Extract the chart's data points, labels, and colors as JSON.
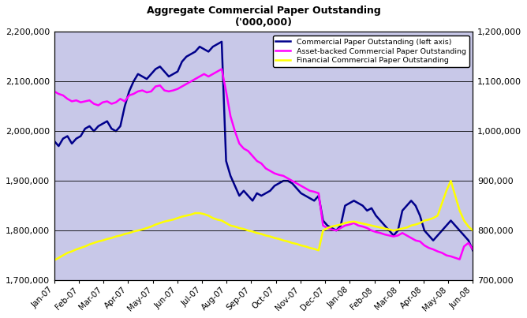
{
  "title_line1": "Aggregate Commercial Paper Outstanding",
  "title_line2": "('000,000)",
  "background_color": "#c8c8e8",
  "fig_bg_color": "#ffffff",
  "left_ylim": [
    1700000,
    2200000
  ],
  "right_ylim": [
    700000,
    1200000
  ],
  "left_yticks": [
    1700000,
    1800000,
    1900000,
    2000000,
    2100000,
    2200000
  ],
  "right_yticks": [
    700000,
    800000,
    900000,
    1000000,
    1100000,
    1200000
  ],
  "xtick_labels": [
    "Jan-07",
    "Feb-07",
    "Mar-07",
    "Apr-07",
    "May-07",
    "Jun-07",
    "Jul-07",
    "Aug-07",
    "Sep-07",
    "Oct-07",
    "Nov-07",
    "Dec-07",
    "Jan-08",
    "Feb-08",
    "Mar-08",
    "Apr-08",
    "May-08",
    "Jun-08"
  ],
  "cp_color": "#00008B",
  "abcp_color": "#FF00FF",
  "fcp_color": "#FFFF00",
  "cp_label": "Commercial Paper Outstanding (left axis)",
  "abcp_label": "Asset-backed Commercial Paper Outstanding",
  "fcp_label": "Financial Commercial Paper Outstanding",
  "cp_data": [
    1980000,
    1970000,
    1985000,
    1990000,
    1975000,
    1985000,
    1990000,
    2005000,
    2010000,
    2000000,
    2010000,
    2015000,
    2020000,
    2005000,
    2000000,
    2010000,
    2050000,
    2080000,
    2100000,
    2115000,
    2110000,
    2105000,
    2115000,
    2125000,
    2130000,
    2120000,
    2110000,
    2115000,
    2120000,
    2140000,
    2150000,
    2155000,
    2160000,
    2170000,
    2165000,
    2160000,
    2170000,
    2175000,
    2180000,
    1940000,
    1910000,
    1890000,
    1870000,
    1880000,
    1870000,
    1860000,
    1875000,
    1870000,
    1875000,
    1880000,
    1890000,
    1895000,
    1900000,
    1900000,
    1895000,
    1885000,
    1875000,
    1870000,
    1865000,
    1860000,
    1870000,
    1820000,
    1810000,
    1805000,
    1800000,
    1810000,
    1850000,
    1855000,
    1860000,
    1855000,
    1850000,
    1840000,
    1845000,
    1830000,
    1820000,
    1810000,
    1800000,
    1790000,
    1800000,
    1840000,
    1850000,
    1860000,
    1850000,
    1830000,
    1800000,
    1790000,
    1780000,
    1790000,
    1800000,
    1810000,
    1820000,
    1810000,
    1800000,
    1790000,
    1780000,
    1760000
  ],
  "abcp_data": [
    1080000,
    1075000,
    1072000,
    1065000,
    1060000,
    1062000,
    1058000,
    1060000,
    1062000,
    1055000,
    1052000,
    1058000,
    1060000,
    1055000,
    1058000,
    1065000,
    1060000,
    1072000,
    1075000,
    1080000,
    1082000,
    1078000,
    1080000,
    1090000,
    1092000,
    1082000,
    1080000,
    1082000,
    1085000,
    1090000,
    1095000,
    1100000,
    1105000,
    1110000,
    1115000,
    1110000,
    1115000,
    1120000,
    1125000,
    1080000,
    1030000,
    1000000,
    975000,
    965000,
    960000,
    950000,
    940000,
    935000,
    925000,
    920000,
    915000,
    912000,
    910000,
    905000,
    900000,
    895000,
    890000,
    885000,
    880000,
    878000,
    875000,
    810000,
    805000,
    802000,
    800000,
    805000,
    810000,
    812000,
    815000,
    810000,
    808000,
    805000,
    800000,
    797000,
    795000,
    792000,
    790000,
    788000,
    790000,
    795000,
    790000,
    785000,
    780000,
    778000,
    770000,
    765000,
    762000,
    758000,
    755000,
    750000,
    748000,
    745000,
    742000,
    768000,
    775000,
    762000
  ],
  "fcp_data": [
    740000,
    745000,
    750000,
    755000,
    758000,
    762000,
    765000,
    768000,
    772000,
    775000,
    778000,
    780000,
    783000,
    785000,
    788000,
    790000,
    793000,
    795000,
    798000,
    800000,
    802000,
    805000,
    808000,
    812000,
    815000,
    818000,
    820000,
    822000,
    825000,
    828000,
    830000,
    832000,
    835000,
    835000,
    833000,
    830000,
    825000,
    822000,
    820000,
    815000,
    810000,
    808000,
    805000,
    803000,
    800000,
    798000,
    795000,
    793000,
    790000,
    788000,
    785000,
    783000,
    780000,
    778000,
    775000,
    773000,
    770000,
    768000,
    765000,
    763000,
    760000,
    800000,
    805000,
    808000,
    810000,
    812000,
    815000,
    817000,
    818000,
    816000,
    814000,
    812000,
    810000,
    808000,
    806000,
    804000,
    802000,
    800000,
    802000,
    804000,
    806000,
    810000,
    812000,
    815000,
    820000,
    822000,
    825000,
    830000,
    855000,
    880000,
    900000,
    870000,
    840000,
    820000,
    808000,
    800000
  ]
}
